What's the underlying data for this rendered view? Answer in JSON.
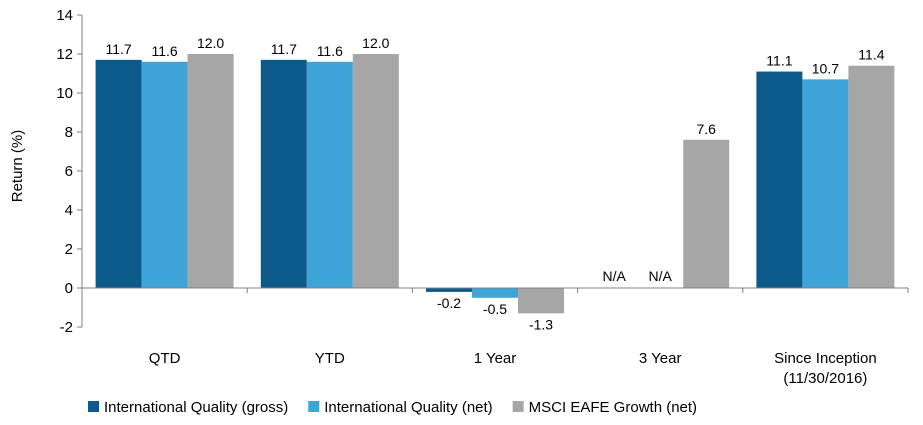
{
  "chart_data": {
    "type": "bar",
    "ylabel": "Return (%)",
    "ylim": [
      -2,
      14
    ],
    "yticks": [
      -2,
      0,
      2,
      4,
      6,
      8,
      10,
      12,
      14
    ],
    "grid": false,
    "legend_position": "bottom",
    "categories": [
      [
        "QTD"
      ],
      [
        "YTD"
      ],
      [
        "1 Year"
      ],
      [
        "3 Year"
      ],
      [
        "Since Inception",
        "(11/30/2016)"
      ]
    ],
    "series": [
      {
        "name": "International Quality (gross)",
        "color": "#0b5a8a",
        "values": [
          11.7,
          11.7,
          -0.2,
          null,
          11.1
        ],
        "labels": [
          "11.7",
          "11.7",
          "-0.2",
          "N/A",
          "11.1"
        ]
      },
      {
        "name": "International Quality (net)",
        "color": "#3ea4d8",
        "values": [
          11.6,
          11.6,
          -0.5,
          null,
          10.7
        ],
        "labels": [
          "11.6",
          "11.6",
          "-0.5",
          "N/A",
          "10.7"
        ]
      },
      {
        "name": "MSCI EAFE Growth (net)",
        "color": "#a6a6a6",
        "values": [
          12.0,
          12.0,
          -1.3,
          7.6,
          11.4
        ],
        "labels": [
          "12.0",
          "12.0",
          "-1.3",
          "7.6",
          "11.4"
        ]
      }
    ]
  }
}
